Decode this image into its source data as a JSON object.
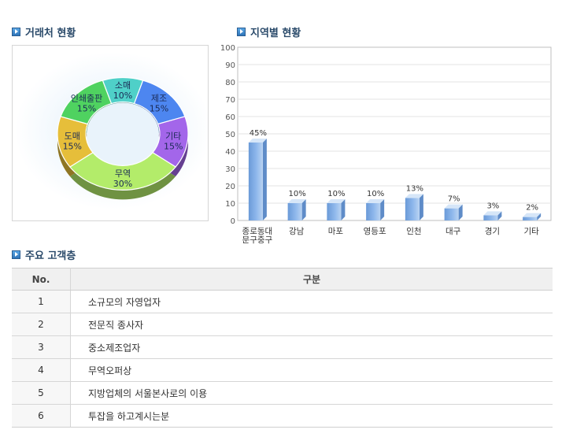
{
  "sections": {
    "clients_title": "거래처 현황",
    "region_title": "지역별 현황",
    "customers_title": "주요 고객층"
  },
  "chart_data": [
    {
      "type": "pie",
      "variant": "donut",
      "title": "거래처 현황",
      "slices": [
        {
          "label": "소매",
          "value": 10,
          "color": "#4fd0c8"
        },
        {
          "label": "제조",
          "value": 15,
          "color": "#4d86f0"
        },
        {
          "label": "기타",
          "value": 15,
          "color": "#a366ea"
        },
        {
          "label": "무역",
          "value": 30,
          "color": "#b3ec6a"
        },
        {
          "label": "도매",
          "value": 15,
          "color": "#e6be3a"
        },
        {
          "label": "인쇄출판",
          "value": 15,
          "color": "#4fd260"
        }
      ]
    },
    {
      "type": "bar",
      "title": "지역별 현황",
      "categories": [
        "종로동대문구중구",
        "강남",
        "마포",
        "영등포",
        "인천",
        "대구",
        "경기",
        "기타"
      ],
      "category_lines": [
        [
          "종로동대",
          "문구중구"
        ],
        [
          "강남"
        ],
        [
          "마포"
        ],
        [
          "영등포"
        ],
        [
          "인천"
        ],
        [
          "대구"
        ],
        [
          "경기"
        ],
        [
          "기타"
        ]
      ],
      "values": [
        45,
        10,
        10,
        10,
        13,
        7,
        3,
        2
      ],
      "value_labels": [
        "45%",
        "10%",
        "10%",
        "10%",
        "13%",
        "7%",
        "3%",
        "2%"
      ],
      "ylim": [
        0,
        100
      ],
      "yticks": [
        0,
        10,
        20,
        30,
        40,
        50,
        60,
        70,
        80,
        90,
        100
      ],
      "grid": true,
      "bar_color": "#8fb8ec"
    }
  ],
  "customers": {
    "headers": {
      "no": "No.",
      "category": "구분"
    },
    "rows": [
      {
        "no": "1",
        "text": "소규모의 자영업자"
      },
      {
        "no": "2",
        "text": "전문직 종사자"
      },
      {
        "no": "3",
        "text": "중소제조업자"
      },
      {
        "no": "4",
        "text": "무역오퍼상"
      },
      {
        "no": "5",
        "text": "지방업체의 서울본사로의 이용"
      },
      {
        "no": "6",
        "text": "투잡을 하고계시는분"
      }
    ]
  }
}
